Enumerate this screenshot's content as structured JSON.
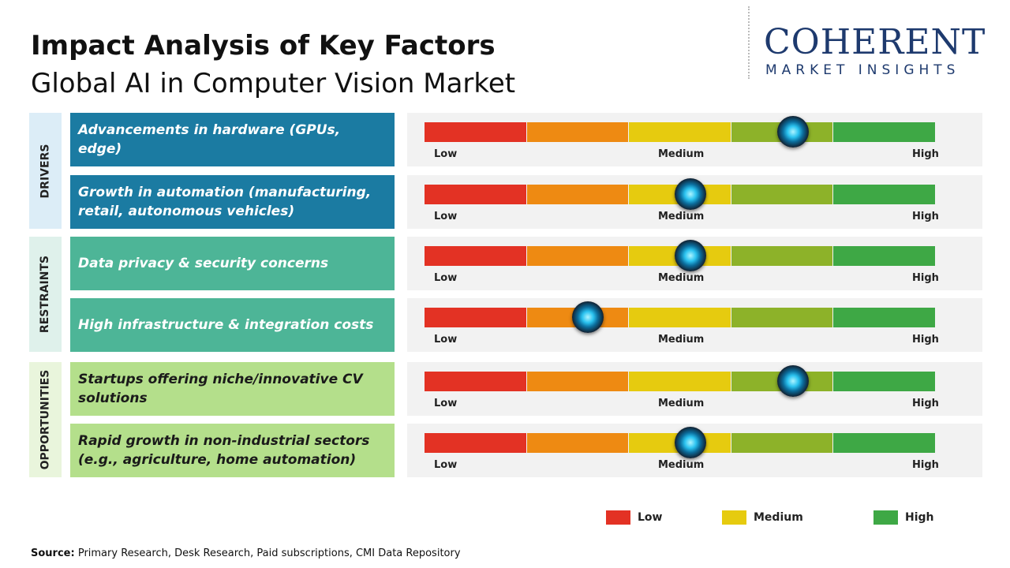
{
  "header": {
    "title": "Impact Analysis of Key Factors",
    "subtitle": "Global AI in Computer Vision Market"
  },
  "logo": {
    "name": "COHERENT",
    "tagline": "MARKET INSIGHTS"
  },
  "scale": {
    "range": [
      0,
      5
    ],
    "labels": [
      "Low",
      "Medium",
      "High"
    ],
    "colors": [
      "#e33224",
      "#ee8a12",
      "#e6cb0f",
      "#8db229",
      "#3ea845"
    ]
  },
  "groups": [
    {
      "label": "DRIVERS",
      "color": "#1b7ba2",
      "text_color": "#ffffff",
      "side_color": "#dcedf7",
      "factors": [
        {
          "text": "Advancements in hardware (GPUs, edge)",
          "level": 3.6
        },
        {
          "text": "Growth in automation (manufacturing, retail, autonomous vehicles)",
          "level": 2.6
        }
      ]
    },
    {
      "label": "RESTRAINTS",
      "color": "#4db597",
      "text_color": "#ffffff",
      "side_color": "#dff1eb",
      "factors": [
        {
          "text": "Data privacy & security concerns",
          "level": 2.6
        },
        {
          "text": "High infrastructure & integration costs",
          "level": 1.6
        }
      ]
    },
    {
      "label": "OPPORTUNITIES",
      "color": "#b4df8b",
      "text_color": "#1a1a1a",
      "side_color": "#e9f5dc",
      "factors": [
        {
          "text": "Startups offering niche/innovative CV solutions",
          "level": 3.6
        },
        {
          "text": "Rapid growth in non-industrial sectors (e.g., agriculture, home automation)",
          "level": 2.6
        }
      ]
    }
  ],
  "legend": [
    {
      "label": "Low",
      "color": "#e33224"
    },
    {
      "label": "Medium",
      "color": "#e6cb0f"
    },
    {
      "label": "High",
      "color": "#3ea845"
    }
  ],
  "source": {
    "label": "Source:",
    "text": "Primary Research, Desk Research, Paid subscriptions, CMI Data Repository"
  }
}
